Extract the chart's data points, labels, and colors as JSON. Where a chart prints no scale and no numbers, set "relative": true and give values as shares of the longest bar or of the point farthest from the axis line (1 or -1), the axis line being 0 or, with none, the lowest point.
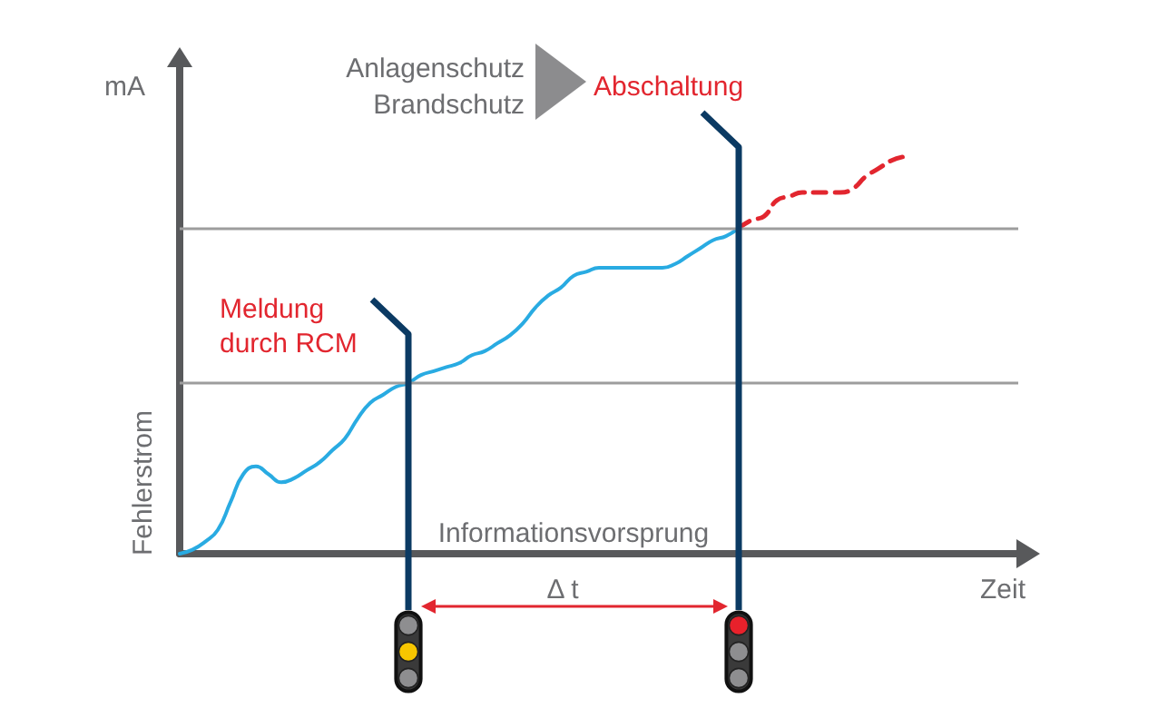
{
  "chart_data": {
    "type": "line",
    "relative": true,
    "marker": "none",
    "line_style": "solid",
    "categories": [
      null,
      null,
      null,
      null,
      null,
      null,
      null,
      null,
      null,
      null,
      null,
      null,
      null,
      null,
      null,
      null,
      null,
      null,
      null,
      null,
      null,
      null,
      null,
      null,
      null,
      null,
      null,
      null,
      null,
      null,
      null,
      null,
      null,
      null,
      null,
      null,
      null,
      null,
      null,
      null,
      null,
      null,
      null,
      null,
      null,
      null,
      null,
      null,
      null,
      null,
      null,
      null,
      null,
      null,
      null,
      null,
      null,
      null,
      null,
      null,
      null,
      null,
      null,
      null,
      null,
      null,
      null
    ],
    "series": [
      {
        "color": "#29abe2",
        "values": [
          0,
          0.01,
          0.03,
          0.06,
          0.13,
          0.2,
          0.22,
          0.2,
          0.18,
          0.19,
          0.21,
          0.23,
          0.26,
          0.29,
          0.34,
          0.38,
          0.4,
          0.42,
          0.43,
          0.45,
          0.46,
          0.47,
          0.48,
          0.5,
          0.51,
          0.53,
          0.55,
          0.58,
          0.62,
          0.65,
          0.67,
          0.7,
          0.71,
          0.72,
          0.72,
          0.72,
          0.72,
          0.72,
          0.72,
          0.73,
          0.75,
          0.77,
          0.79,
          0.8,
          0.82,
          null,
          null,
          null,
          null,
          null,
          null,
          null,
          null,
          null,
          null,
          null,
          null,
          null,
          null,
          null,
          null,
          null,
          null,
          null,
          null,
          null,
          null
        ]
      },
      {
        "color": "#e2262f",
        "line_style": "dashed",
        "values": [
          null,
          null,
          null,
          null,
          null,
          null,
          null,
          null,
          null,
          null,
          null,
          null,
          null,
          null,
          null,
          null,
          null,
          null,
          null,
          null,
          null,
          null,
          null,
          null,
          null,
          null,
          null,
          null,
          null,
          null,
          null,
          null,
          null,
          null,
          null,
          null,
          null,
          null,
          null,
          null,
          null,
          null,
          null,
          null,
          0.82,
          0.84,
          0.85,
          0.89,
          0.9,
          0.91,
          0.91,
          0.91,
          0.91,
          0.92,
          0.95,
          0.97,
          0.99,
          1,
          null,
          null,
          null,
          null,
          null,
          null,
          null,
          null,
          null
        ]
      }
    ],
    "xlabel": "Zeit",
    "ylabel": "Fehlerstrom",
    "ref_lines": [
      {
        "axis": "y",
        "value": 0.43,
        "color": "#9d9d9d"
      },
      {
        "axis": "y",
        "value": 0.82,
        "color": "#9d9d9d"
      }
    ],
    "annotations": [
      "mA",
      "Informationsvorsprung",
      "Δ t",
      "Anlagenschutz",
      "Brandschutz",
      "Meldung durch RCM",
      "Abschaltung"
    ]
  }
}
